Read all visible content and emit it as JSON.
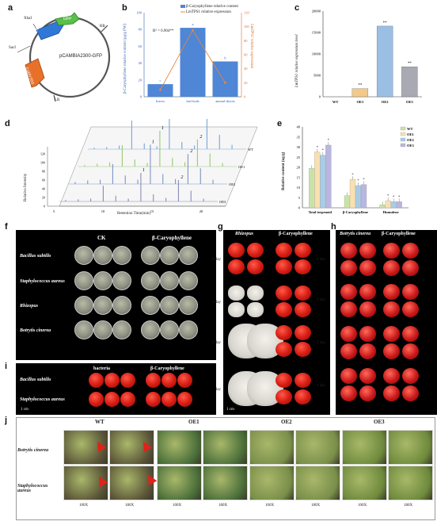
{
  "panel_labels": {
    "a": "a",
    "b": "b",
    "c": "c",
    "d": "d",
    "e": "e",
    "f": "f",
    "g": "g",
    "h": "h",
    "i": "i",
    "j": "j"
  },
  "panel_a": {
    "plasmid": "pCAMBIA2300-GFP",
    "xbai": "XbaI",
    "saci": "SacI",
    "gfp": "GFP",
    "lmtps1": "LmTPS1",
    "camv35s": "CaMV35S",
    "rb": "RB",
    "lb": "LB"
  },
  "panel_b": {
    "legend_bar": "β-Caryophyllene relative content",
    "legend_line": "LmTPS1 relative expression",
    "ylabel_left": "β-Caryophyllene relative content (μg/g FW)",
    "ylabel_right": "LmTPS1 relative expression",
    "r2": "R² = 0.904**",
    "colors": {
      "bar": "#4f86d6",
      "line": "#e8843a"
    }
  },
  "panel_c": {
    "ylabel": "LmTPS1 relative expression level",
    "star": "**"
  },
  "panel_d": {
    "xlabel": "Retention Time(min)",
    "ylabel": "Relative Intensity",
    "peak_label_1": "1",
    "peak_label_2": "2",
    "traces": [
      "WT",
      "OE1",
      "OE2",
      "OE3"
    ]
  },
  "panel_e": {
    "ylabel": "Relative content (ug/g)",
    "star": "*",
    "series": [
      "WT",
      "OE1",
      "OE2",
      "OE3"
    ],
    "categories": [
      "Total terpenoid",
      "β-Caryophyllene",
      "Humulene"
    ]
  },
  "chart_data": [
    {
      "type": "bar",
      "categories": [
        "leaves",
        "leaf buds",
        "annual shoots"
      ],
      "series": [
        {
          "name": "β-Caryophyllene relative content",
          "values": [
            15,
            82,
            42
          ]
        },
        {
          "name": "LmTPS1 relative expression",
          "values": [
            10,
            95,
            20
          ]
        }
      ],
      "letters": [
        "c",
        "a",
        "b"
      ],
      "ylim": [
        0,
        100
      ],
      "yticks": [
        "0",
        "20",
        "40",
        "60",
        "80",
        "100"
      ],
      "yticks_right": [
        "0",
        "20",
        "40",
        "60",
        "80",
        "100",
        "120"
      ]
    },
    {
      "type": "bar",
      "categories": [
        "WT",
        "OE1",
        "OE2",
        "OE3"
      ],
      "values": [
        0,
        1900,
        16500,
        7000
      ],
      "ylim": [
        0,
        20000
      ],
      "yticks": [
        "0",
        "5000",
        "10000",
        "15000",
        "20000"
      ],
      "annotations": [
        "",
        "**",
        "**",
        "**"
      ]
    },
    {
      "type": "line",
      "xlabel": "Retention Time(min)",
      "ylabel": "Relative Intensity",
      "xticks": [
        "5",
        "10",
        "15",
        "20"
      ],
      "zticks": [
        "0",
        "20",
        "40",
        "60",
        "80",
        "100",
        "120"
      ],
      "series": [
        {
          "name": "WT",
          "values": [
            2,
            3,
            5,
            40,
            8,
            4,
            60,
            10,
            5,
            45,
            20,
            6
          ]
        },
        {
          "name": "OE1",
          "values": [
            2,
            4,
            6,
            30,
            10,
            5,
            50,
            12,
            6,
            38,
            18,
            5
          ]
        },
        {
          "name": "OE2",
          "values": [
            3,
            5,
            6,
            28,
            12,
            6,
            55,
            14,
            7,
            42,
            22,
            6
          ]
        },
        {
          "name": "OE3",
          "values": [
            2,
            3,
            4,
            22,
            8,
            4,
            40,
            10,
            5,
            30,
            15,
            4
          ]
        }
      ]
    },
    {
      "type": "bar",
      "categories": [
        "Total terpenoid",
        "β-Caryophyllene",
        "Humulene"
      ],
      "ylim": [
        0,
        40
      ],
      "yticks": [
        "0",
        "5",
        "10",
        "15",
        "20",
        "25",
        "30",
        "35",
        "40"
      ],
      "series": [
        {
          "name": "WT",
          "values": [
            19.5,
            6,
            1.5
          ]
        },
        {
          "name": "OE1",
          "values": [
            27.5,
            14,
            3.5
          ]
        },
        {
          "name": "OE2",
          "values": [
            26,
            11,
            3
          ]
        },
        {
          "name": "OE3",
          "values": [
            31,
            11.5,
            3
          ]
        }
      ],
      "colors": [
        "#c9e3a6",
        "#f8e0b0",
        "#a9cbe6",
        "#b9b6df"
      ]
    }
  ],
  "panel_f": {
    "col1": "CK",
    "col2": "β-Caryophyllene",
    "rows": [
      "Bacillus subtilis",
      "Staphylococcus aureus",
      "Rhizopus",
      "Botrytis cinerea"
    ]
  },
  "panel_g": {
    "col1": "Rhizopus",
    "col2": "β-Caryophyllene",
    "rows": [
      "0 day",
      "1 day",
      "2 day",
      "3 day"
    ],
    "scale": "1 cm"
  },
  "panel_h": {
    "col1": "Botrytis cinerea",
    "col2": "β-Caryophyllene",
    "rows": [
      "0 day",
      "2 day",
      "3 day",
      "4 day"
    ]
  },
  "panel_i": {
    "col1": "bacteria",
    "col2": "β-Caryophyllene",
    "rows": [
      "Bacillus subtilis",
      "Staphylococcus aureus"
    ],
    "scale": "1 cm"
  },
  "panel_j": {
    "groups": [
      "WT",
      "OE1",
      "OE2",
      "OE3"
    ],
    "rows": [
      "Botrytis cinerea",
      "Staphylococcus aureus"
    ],
    "mags": [
      "100X",
      "180X",
      "100X",
      "180X",
      "100X",
      "180X",
      "100X",
      "180X"
    ]
  }
}
